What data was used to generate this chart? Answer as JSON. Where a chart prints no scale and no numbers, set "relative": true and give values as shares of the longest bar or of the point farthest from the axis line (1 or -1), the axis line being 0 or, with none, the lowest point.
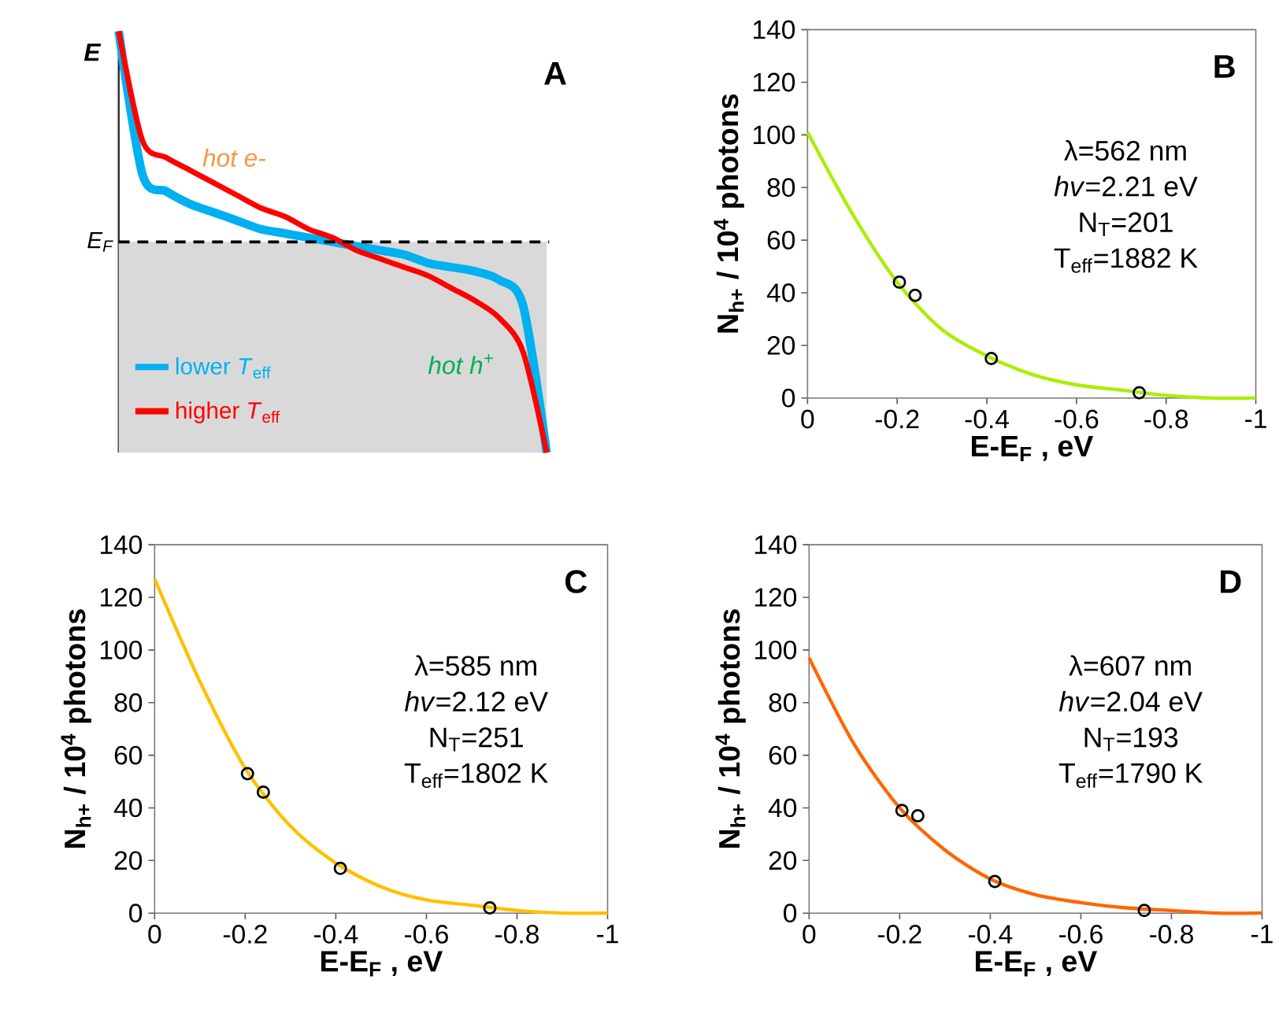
{
  "chart_data": [
    {
      "type": "line",
      "title": "A",
      "ylabel": "E",
      "relative": true,
      "legend": "bottom left",
      "categories": [
        null,
        null,
        null,
        null,
        null,
        null,
        null,
        null,
        null,
        null,
        null,
        null,
        null,
        null,
        null,
        null,
        null,
        null,
        null
      ],
      "series": [
        {
          "name": "lower *T*$_{eff}$",
          "color": "#00b0f0",
          "values": [
            1.0,
            0.66,
            0.62,
            0.59,
            0.57,
            0.55,
            0.53,
            0.52,
            0.51,
            0.5,
            0.49,
            0.48,
            0.47,
            0.45,
            0.44,
            0.43,
            0.41,
            0.35,
            0.0
          ]
        },
        {
          "name": "higher *T*$_{eff}$",
          "color": "#ff0000",
          "values": [
            1.0,
            0.74,
            0.7,
            0.67,
            0.64,
            0.61,
            0.58,
            0.56,
            0.53,
            0.51,
            0.48,
            0.46,
            0.44,
            0.42,
            0.39,
            0.36,
            0.32,
            0.24,
            0.0
          ]
        }
      ],
      "ref_lines": [
        {
          "axis": "y",
          "value": 0.5,
          "label": "E$_{F}$",
          "color": "#000000",
          "line_style": "dashed"
        }
      ],
      "bands": [
        {
          "axis": "y",
          "from": 0,
          "to": 0.5,
          "color": "#d9d9d9"
        }
      ],
      "annotations": [
        "hot e-",
        "hot h$^{+}$"
      ]
    },
    {
      "type": "scatter",
      "title": "B",
      "xlabel": "E-E$_{F}$ , eV",
      "ylabel": "N$_{h+}$ / 10$^{4}$ photons",
      "xlim": [
        0,
        -1
      ],
      "xticks": [
        0,
        -0.2,
        -0.4,
        -0.6,
        -0.8,
        -1
      ],
      "ylim": [
        0,
        140
      ],
      "yticks": [
        0,
        20,
        40,
        60,
        80,
        100,
        120,
        140
      ],
      "series": [
        {
          "type": "line",
          "marker": "none",
          "color": "#aaee00",
          "x": [
            0,
            -0.1,
            -0.2,
            -0.3,
            -0.4,
            -0.5,
            -0.6,
            -0.7,
            -0.8,
            -0.9,
            -1
          ],
          "values": [
            101,
            70,
            44,
            26,
            16,
            9,
            5,
            3,
            1,
            0,
            0
          ]
        },
        {
          "type": "scatter",
          "marker": "circle",
          "color": "#000000",
          "x": [
            -0.205,
            -0.24,
            -0.41,
            -0.74
          ],
          "values": [
            44,
            39,
            15,
            2
          ]
        }
      ],
      "annotations": [
        "λ=562 nm",
        "*hv*=2.21 eV",
        "N$_{T}$=201",
        "T$_{eff}$=1882 K"
      ]
    },
    {
      "type": "scatter",
      "title": "C",
      "xlabel": "E-E$_{F}$ , eV",
      "ylabel": "N$_{h+}$ / 10$^{4}$ photons",
      "xlim": [
        0,
        -1
      ],
      "xticks": [
        0,
        -0.2,
        -0.4,
        -0.6,
        -0.8,
        -1
      ],
      "ylim": [
        0,
        140
      ],
      "yticks": [
        0,
        20,
        40,
        60,
        80,
        100,
        120,
        140
      ],
      "series": [
        {
          "type": "line",
          "marker": "none",
          "color": "#ffc000",
          "x": [
            0,
            -0.1,
            -0.2,
            -0.3,
            -0.4,
            -0.5,
            -0.6,
            -0.7,
            -0.8,
            -0.9,
            -1
          ],
          "values": [
            127,
            88,
            55,
            33,
            19,
            10,
            5,
            3,
            1,
            0,
            0
          ]
        },
        {
          "type": "scatter",
          "marker": "circle",
          "color": "#000000",
          "x": [
            -0.205,
            -0.24,
            -0.41,
            -0.74
          ],
          "values": [
            53,
            46,
            17,
            2
          ]
        }
      ],
      "annotations": [
        "λ=585 nm",
        "*hv*=2.12 eV",
        "N$_{T}$=251",
        "T$_{eff}$=1802 K"
      ]
    },
    {
      "type": "scatter",
      "title": "D",
      "xlabel": "E-E$_{F}$ , eV",
      "ylabel": "N$_{h+}$ / 10$^{4}$ photons",
      "xlim": [
        0,
        -1
      ],
      "xticks": [
        0,
        -0.2,
        -0.4,
        -0.6,
        -0.8,
        -1
      ],
      "ylim": [
        0,
        140
      ],
      "yticks": [
        0,
        20,
        40,
        60,
        80,
        100,
        120,
        140
      ],
      "series": [
        {
          "type": "line",
          "marker": "none",
          "color": "#ff6600",
          "x": [
            0,
            -0.1,
            -0.2,
            -0.3,
            -0.4,
            -0.5,
            -0.6,
            -0.7,
            -0.8,
            -0.9,
            -1
          ],
          "values": [
            97,
            64,
            40,
            24,
            13,
            7,
            4,
            2,
            1,
            0,
            0
          ]
        },
        {
          "type": "scatter",
          "marker": "circle",
          "color": "#000000",
          "x": [
            -0.205,
            -0.24,
            -0.41,
            -0.74
          ],
          "values": [
            39,
            37,
            12,
            1
          ]
        }
      ],
      "annotations": [
        "λ=607 nm",
        "*hv*=2.04 eV",
        "N$_{T}$=193",
        "T$_{eff}$=1790 K"
      ]
    }
  ]
}
